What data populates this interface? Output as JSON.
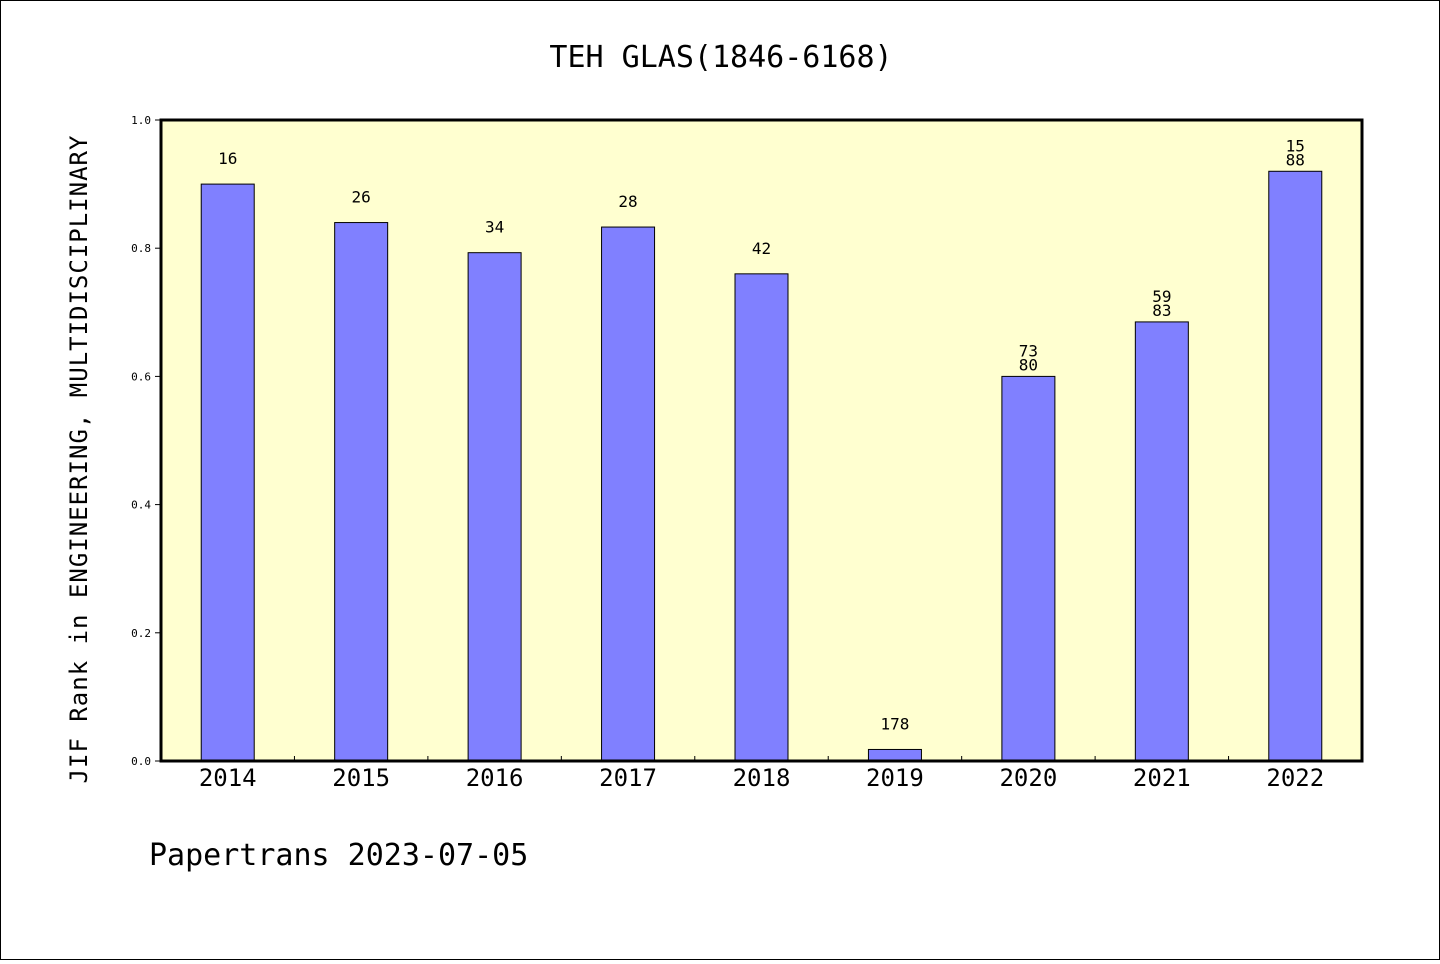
{
  "chart_data": {
    "type": "bar",
    "title": "TEH GLAS(1846-6168)",
    "xlabel": "",
    "ylabel": "JIF Rank in ENGINEERING, MULTIDISCIPLINARY",
    "categories": [
      "2014",
      "2015",
      "2016",
      "2017",
      "2018",
      "2019",
      "2020",
      "2021",
      "2022"
    ],
    "values": [
      0.9,
      0.84,
      0.793,
      0.833,
      0.76,
      0.018,
      0.6,
      0.685,
      0.92
    ],
    "data_labels": [
      [
        "16"
      ],
      [
        "26"
      ],
      [
        "34"
      ],
      [
        "28"
      ],
      [
        "42"
      ],
      [
        "178"
      ],
      [
        "73",
        "80"
      ],
      [
        "59",
        "83"
      ],
      [
        "15",
        "88"
      ]
    ],
    "ylim": [
      0,
      1.0
    ],
    "yticks": [
      "0.0",
      "0.2",
      "0.4",
      "0.6",
      "0.8",
      "1.0"
    ],
    "grid": false,
    "colors": {
      "bar": "#8080ff",
      "plot_bg": "#ffffd0",
      "bar_edge": "#000000"
    }
  },
  "footer": {
    "text": "Papertrans 2023-07-05"
  }
}
